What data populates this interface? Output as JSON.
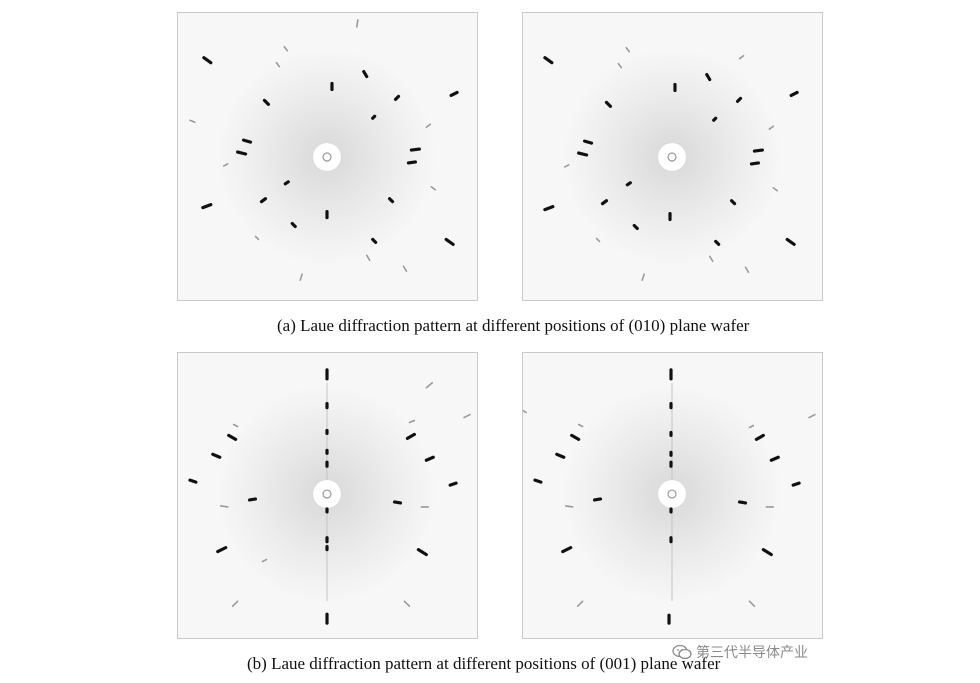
{
  "figure": {
    "caption_a": "(a) Laue diffraction pattern at different positions of (010) plane wafer",
    "caption_b": "(b) Laue diffraction pattern at different positions of (001) plane wafer"
  },
  "watermark": {
    "text": "第三代半导体产业",
    "icon": "wechat-icon"
  },
  "colors": {
    "panel_bg": "#f7f7f7",
    "spot": "#111111",
    "faint_spot": "#9a9a9a"
  }
}
